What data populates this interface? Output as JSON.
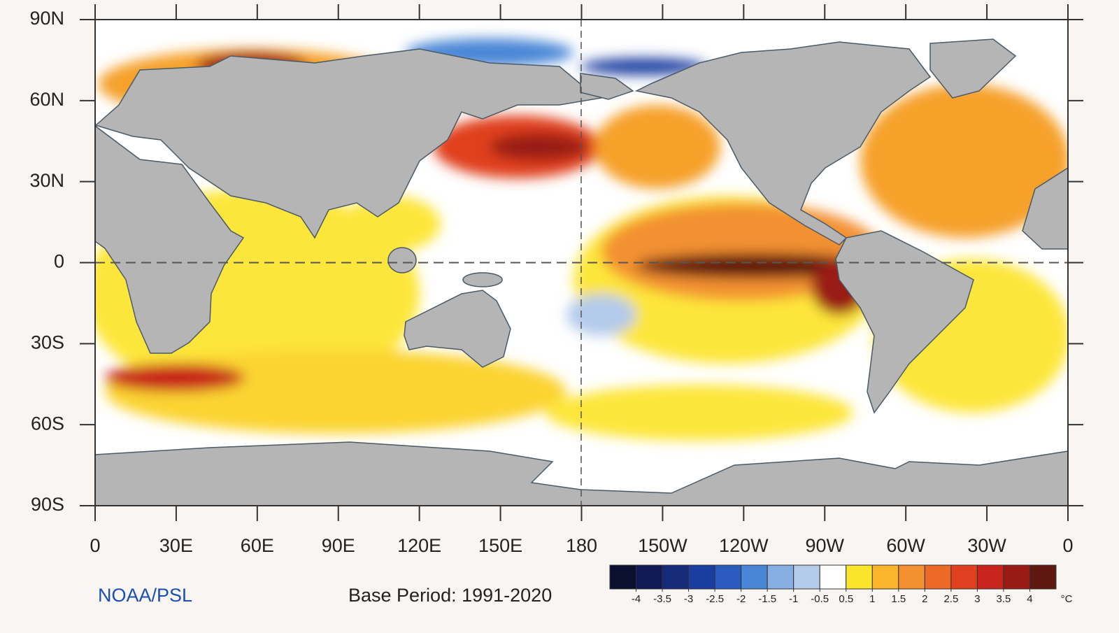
{
  "map": {
    "lat_ticks": [
      {
        "value": 90,
        "label": "90N"
      },
      {
        "value": 60,
        "label": "60N"
      },
      {
        "value": 30,
        "label": "30N"
      },
      0,
      {
        "value": -30,
        "label": "30S"
      },
      {
        "value": -60,
        "label": "60S"
      },
      {
        "value": -90,
        "label": "90S"
      }
    ],
    "lon_ticks": [
      0,
      {
        "value": 30,
        "label": "30E"
      },
      {
        "value": 60,
        "label": "60E"
      },
      {
        "value": 90,
        "label": "90E"
      },
      {
        "value": 120,
        "label": "120E"
      },
      {
        "value": 150,
        "label": "150E"
      },
      180,
      {
        "value": 210,
        "label": "150W"
      },
      {
        "value": 240,
        "label": "120W"
      },
      {
        "value": 270,
        "label": "90W"
      },
      {
        "value": 300,
        "label": "60W"
      },
      {
        "value": 330,
        "label": "30W"
      },
      {
        "value": 360,
        "label": "0"
      }
    ],
    "source": "NOAA/PSL",
    "base_period": "Base Period: 1991-2020",
    "colorbar": {
      "ticks": [
        -4,
        -3.5,
        -3,
        -2.5,
        -2,
        -1.5,
        -1,
        -0.5,
        0.5,
        1,
        1.5,
        2,
        2.5,
        3,
        3.5,
        4
      ],
      "colors": [
        "#0b1030",
        "#121a55",
        "#162a7a",
        "#1a3ea0",
        "#2a5cc0",
        "#4a86d6",
        "#86aee2",
        "#b4cbea",
        "#ffffff",
        "#fbe52a",
        "#f9b52e",
        "#f39130",
        "#ec6a26",
        "#e0401f",
        "#c8231c",
        "#9a1a14",
        "#5e1810"
      ],
      "unit": "°C"
    }
  }
}
